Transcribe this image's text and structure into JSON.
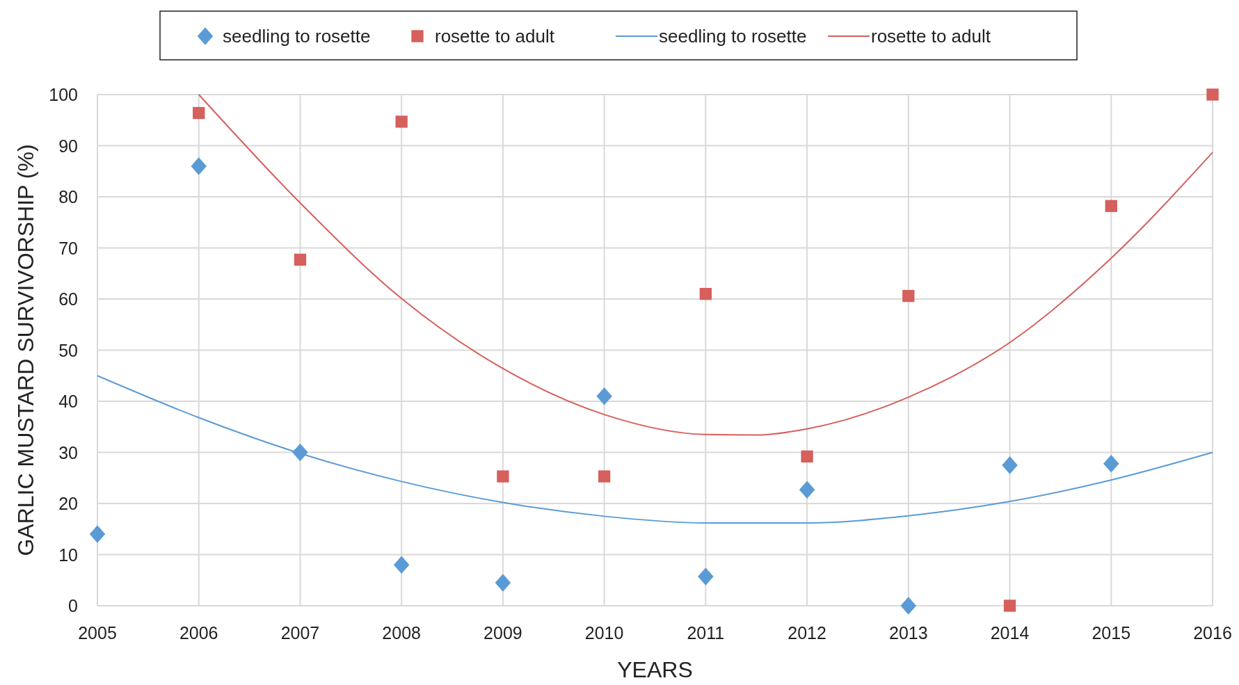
{
  "chart_data": {
    "type": "scatter",
    "xlabel": "YEARS",
    "ylabel": "GARLIC MUSTARD SURVIVORSHIP (%)",
    "xlim": [
      2005,
      2016
    ],
    "xticks": [
      2005,
      2006,
      2007,
      2008,
      2009,
      2010,
      2011,
      2012,
      2013,
      2014,
      2015,
      2016
    ],
    "ylim": [
      0,
      100
    ],
    "yticks": [
      0,
      10,
      20,
      30,
      40,
      50,
      60,
      70,
      80,
      90,
      100
    ],
    "grid": true,
    "legend": "top",
    "series": [
      {
        "name": "seedling to rosette",
        "marker": "diamond",
        "color": "#5b9bd5",
        "x": [
          2005,
          2006,
          2007,
          2008,
          2009,
          2010,
          2011,
          2012,
          2013,
          2014,
          2015
        ],
        "values": [
          14,
          86,
          30,
          8,
          4.5,
          41,
          5.7,
          22.7,
          0,
          27.5,
          27.8
        ]
      },
      {
        "name": "rosette to adult",
        "marker": "square",
        "color": "#d5605c",
        "x": [
          2006,
          2007,
          2008,
          2009,
          2010,
          2011,
          2012,
          2013,
          2014,
          2015,
          2016
        ],
        "values": [
          96.4,
          67.7,
          94.7,
          25.3,
          25.3,
          61,
          29.2,
          60.6,
          0,
          78.2,
          100
        ]
      },
      {
        "name": "seedling to rosette",
        "type": "line",
        "marker": "none",
        "color": "#5b9bd5",
        "x": [
          2005,
          2006,
          2007,
          2008,
          2009,
          2010,
          2011,
          2012,
          2013,
          2014,
          2015,
          2016
        ],
        "values": [
          45,
          36.8,
          29.8,
          24.3,
          20.2,
          17.5,
          16.2,
          16.2,
          17.6,
          20.4,
          24.6,
          30
        ]
      },
      {
        "name": "rosette to adult",
        "type": "line",
        "marker": "none",
        "color": "#d5605c",
        "x": [
          2006,
          2007,
          2008,
          2009,
          2010,
          2011,
          2011.5,
          2012,
          2013,
          2014,
          2015,
          2016
        ],
        "values": [
          100,
          78.8,
          60.1,
          46.4,
          37.4,
          33.5,
          33.4,
          34.6,
          40.8,
          51.5,
          68,
          88.7
        ]
      }
    ]
  }
}
